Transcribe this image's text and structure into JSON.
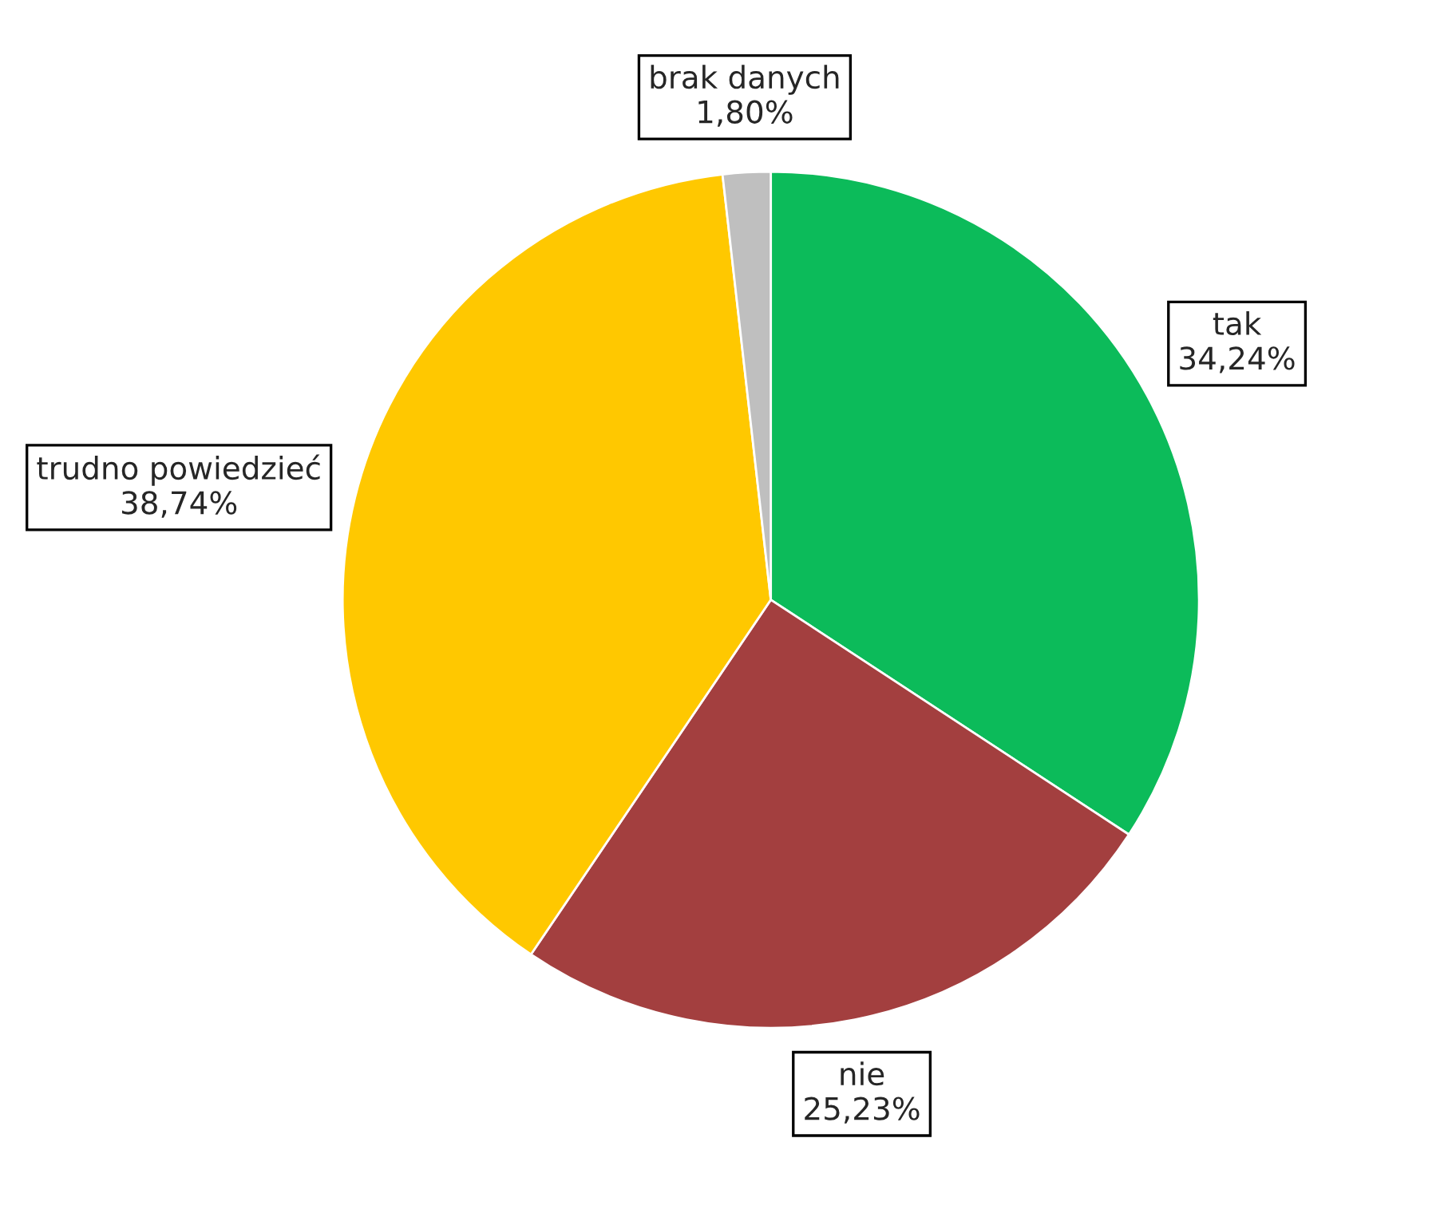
{
  "chart_data": {
    "type": "pie",
    "categories": [
      "tak",
      "nie",
      "trudno powiedzieć",
      "brak danych"
    ],
    "values": [
      34.24,
      25.23,
      38.74,
      1.8
    ],
    "value_labels": [
      "34,24%",
      "25,23%",
      "38,74%",
      "1,80%"
    ],
    "colors": [
      "#0cbb5a",
      "#a33f3f",
      "#ffc800",
      "#bfbfbf"
    ],
    "legend": false
  }
}
